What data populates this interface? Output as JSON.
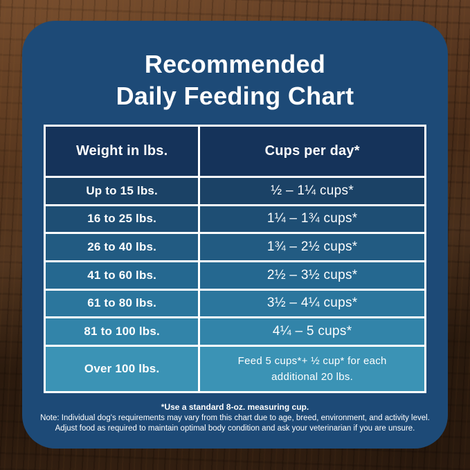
{
  "title": {
    "line1": "Recommended",
    "line2": "Daily Feeding Chart"
  },
  "table": {
    "col1_header": "Weight in lbs.",
    "col2_header": "Cups per day*",
    "rows": [
      {
        "weight": "Up to 15 lbs.",
        "cups": "½ – 1¼ cups*"
      },
      {
        "weight": "16 to 25 lbs.",
        "cups": "1¼ – 1¾  cups*"
      },
      {
        "weight": "26 to 40 lbs.",
        "cups": "1¾ – 2½ cups*"
      },
      {
        "weight": "41 to 60 lbs.",
        "cups": "2½ – 3½ cups*"
      },
      {
        "weight": "61 to 80 lbs.",
        "cups": "3½ – 4¼ cups*"
      },
      {
        "weight": "81 to 100 lbs.",
        "cups": "4¼ – 5 cups*"
      },
      {
        "weight": "Over 100 lbs.",
        "cups": "Feed 5 cups*+ ½ cup* for each additional 20 lbs."
      }
    ]
  },
  "footnotes": {
    "line1": "*Use a standard 8-oz. measuring cup.",
    "line2": "Note: Individual dog's requirements may vary from this chart due to age, breed, environment, and activity level.",
    "line3": "Adjust food as required to maintain optimal body condition and ask your veterinarian if you are unsure."
  },
  "colors": {
    "panel": "#1d4a77",
    "header_cell": "#15335a",
    "border": "#ffffff",
    "text": "#ffffff",
    "wood_base": "#4c2e19",
    "row_backgrounds": [
      "#1b4266",
      "#1e4e74",
      "#225b82",
      "#256890",
      "#2b769d",
      "#3284a9",
      "#3b93b5"
    ]
  },
  "chart_data": {
    "type": "table",
    "title": "Recommended Daily Feeding Chart",
    "columns": [
      "Weight in lbs.",
      "Cups per day*"
    ],
    "rows": [
      [
        "Up to 15 lbs.",
        "½ – 1¼ cups*"
      ],
      [
        "16 to 25 lbs.",
        "1¼ – 1¾ cups*"
      ],
      [
        "26 to 40 lbs.",
        "1¾ – 2½ cups*"
      ],
      [
        "41 to 60 lbs.",
        "2½ – 3½ cups*"
      ],
      [
        "61 to 80 lbs.",
        "3½ – 4¼ cups*"
      ],
      [
        "81 to 100 lbs.",
        "4¼ – 5 cups*"
      ],
      [
        "Over 100 lbs.",
        "Feed 5 cups*+ ½ cup* for each additional 20 lbs."
      ]
    ],
    "annotations": [
      "*Use a standard 8-oz. measuring cup.",
      "Note: Individual dog's requirements may vary from this chart due to age, breed, environment, and activity level. Adjust food as required to maintain optimal body condition and ask your veterinarian if you are unsure."
    ]
  }
}
